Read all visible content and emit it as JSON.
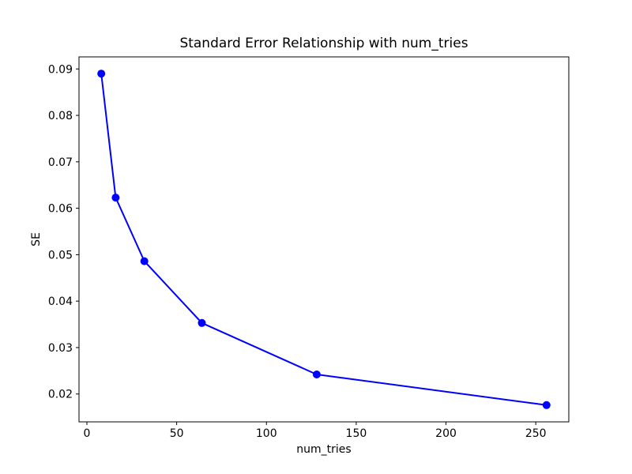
{
  "figure": {
    "background": "#ffffff",
    "spine_color": "#000000",
    "text_color": "#000000"
  },
  "chart_data": {
    "type": "line",
    "title": "Standard Error Relationship with num_tries",
    "xlabel": "num_tries",
    "ylabel": "SE",
    "x": [
      8,
      16,
      32,
      64,
      128,
      256
    ],
    "y": [
      0.089,
      0.0623,
      0.0486,
      0.0353,
      0.0242,
      0.0176
    ],
    "series_name": "SE",
    "line_color": "#0000ff",
    "marker": "circle",
    "marker_color": "#0000ff",
    "xticks": [
      0,
      50,
      100,
      150,
      200,
      250
    ],
    "yticks": [
      0.02,
      0.03,
      0.04,
      0.05,
      0.06,
      0.07,
      0.08,
      0.09
    ],
    "ytick_decimals": 2,
    "xlim": [
      -4.4,
      268.4
    ],
    "ylim": [
      0.014,
      0.0926
    ],
    "grid": false,
    "legend": null
  }
}
